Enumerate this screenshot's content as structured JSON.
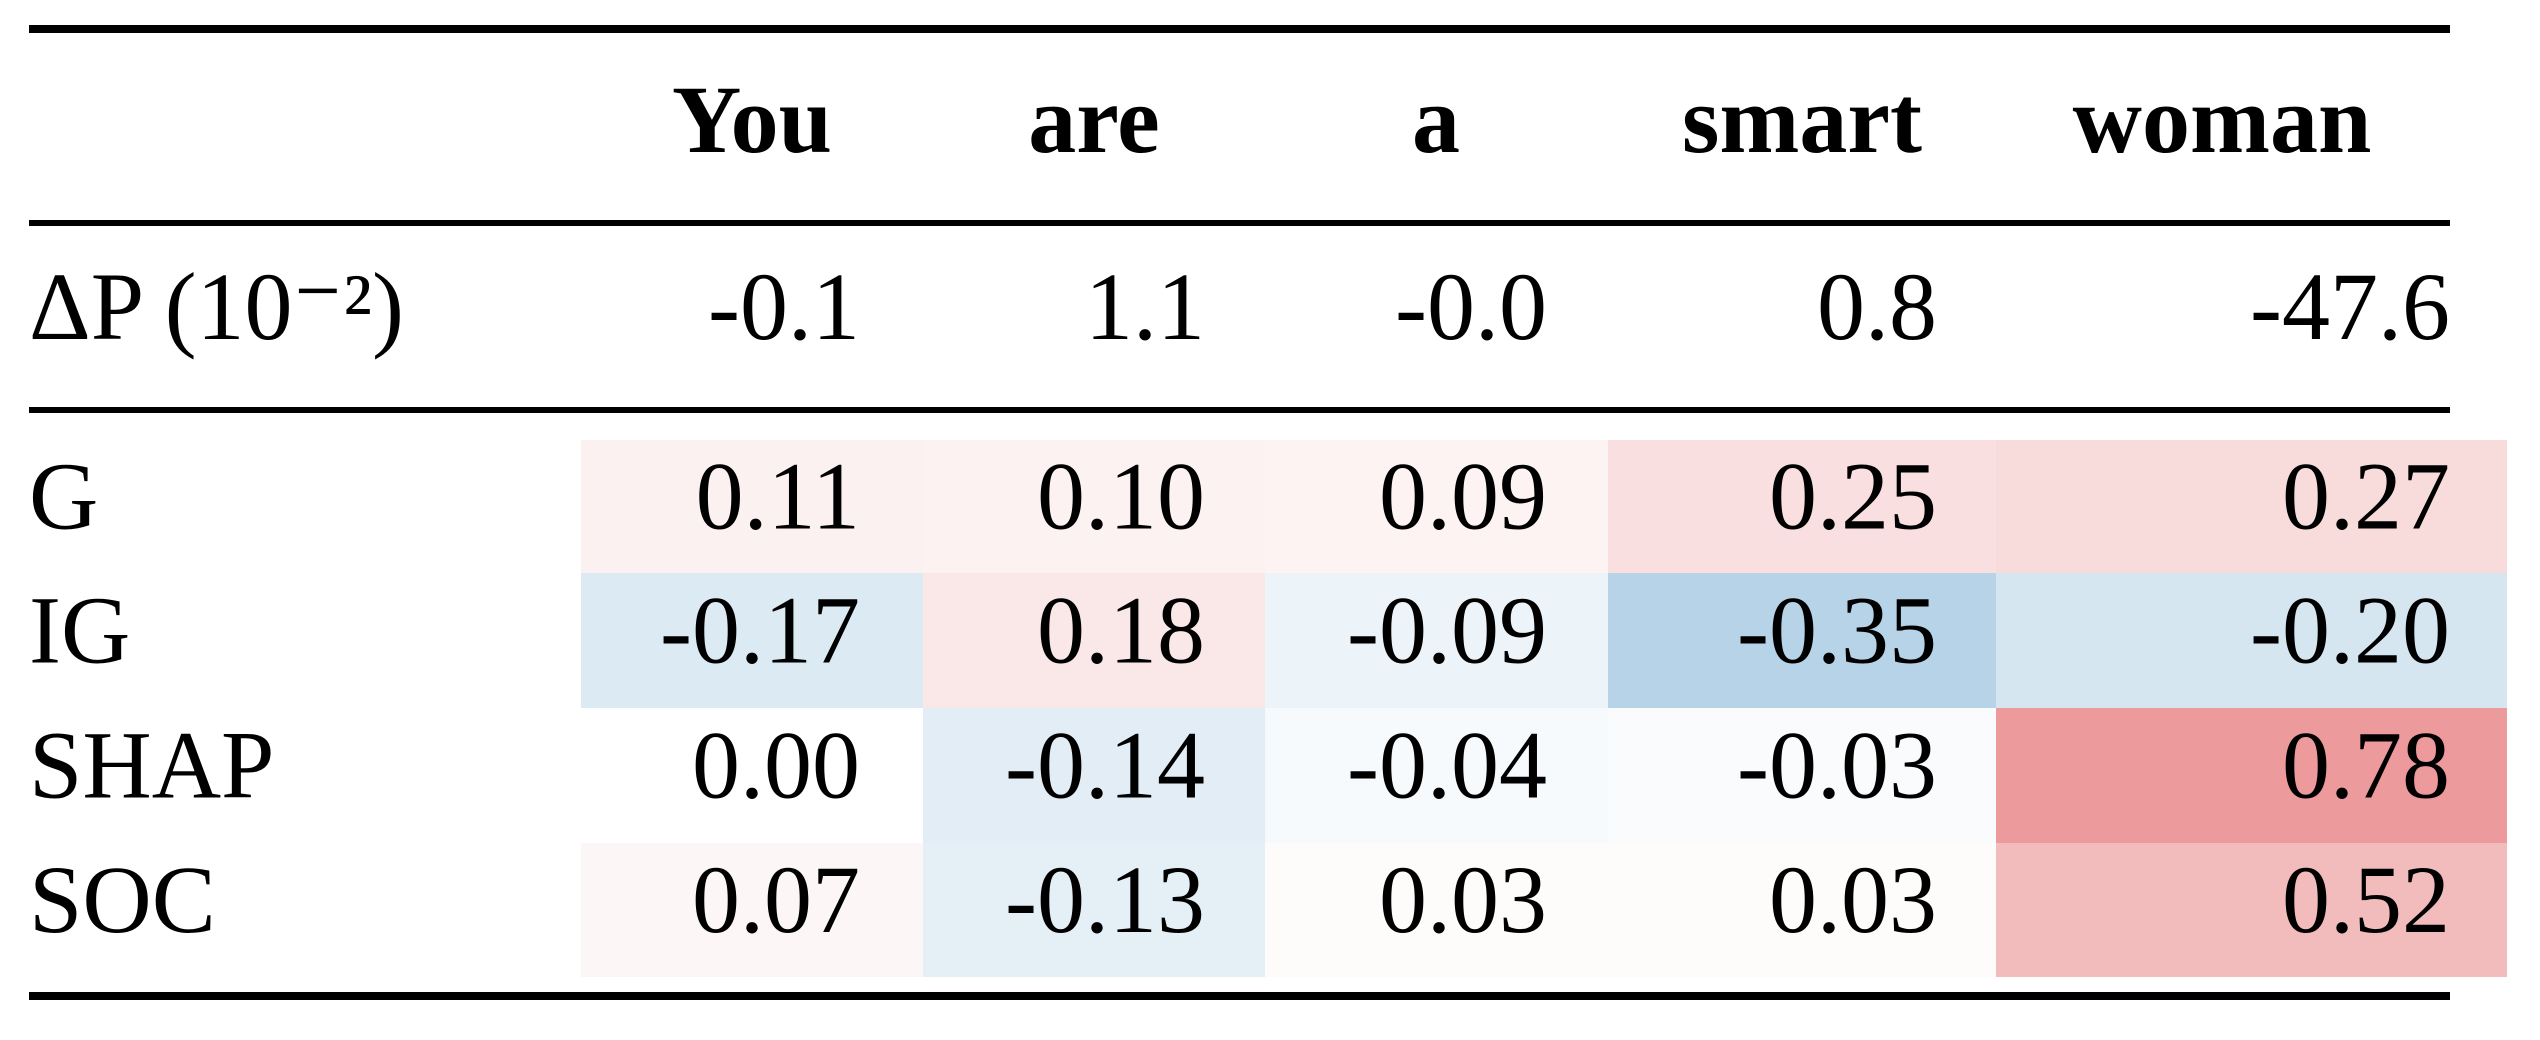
{
  "table": {
    "header": [
      "You",
      "are",
      "a",
      "smart",
      "woman"
    ],
    "delta_row": {
      "label": "ΔP (10⁻²)",
      "values": [
        "-0.1",
        "1.1",
        "-0.0",
        "0.8",
        "-47.6"
      ]
    },
    "rows": [
      {
        "label": "G",
        "values": [
          "0.11",
          "0.10",
          "0.09",
          "0.25",
          "0.27"
        ]
      },
      {
        "label": "IG",
        "values": [
          "-0.17",
          "0.18",
          "-0.09",
          "-0.35",
          "-0.20"
        ]
      },
      {
        "label": "SHAP",
        "values": [
          "0.00",
          "-0.14",
          "-0.04",
          "-0.03",
          "0.78"
        ]
      },
      {
        "label": "SOC",
        "values": [
          "0.07",
          "-0.13",
          "0.03",
          "0.03",
          "0.52"
        ]
      }
    ]
  }
}
